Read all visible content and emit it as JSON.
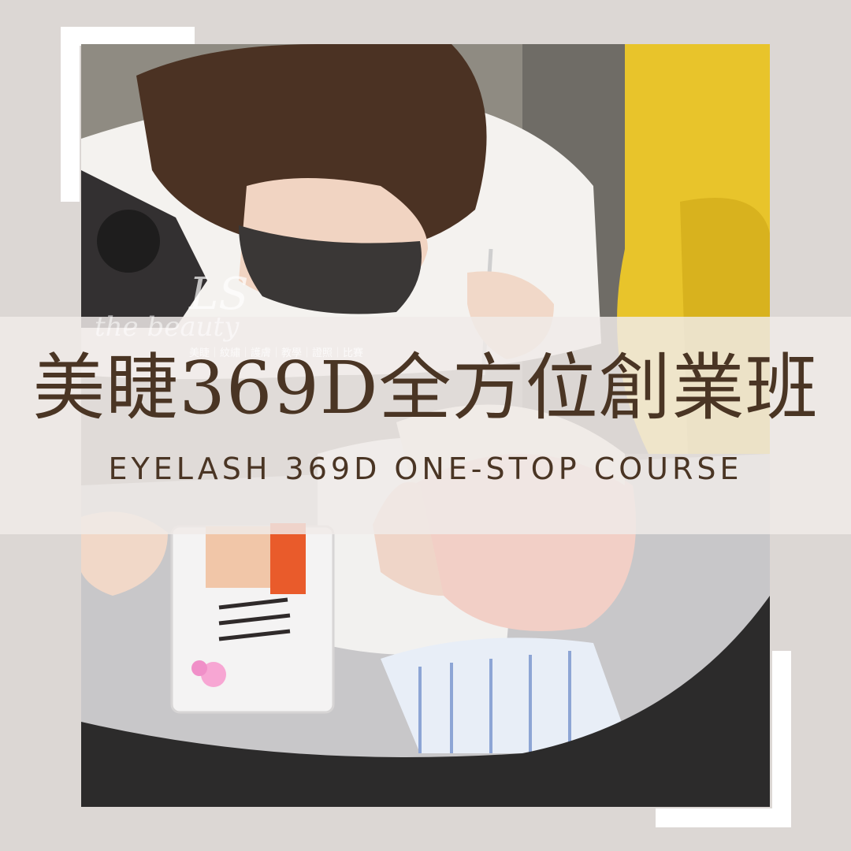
{
  "title_cn": "美睫369D全方位創業班",
  "title_en": "EYELASH 369D ONE-STOP COURSE",
  "watermark": {
    "logo_text": "LS",
    "script_text": "the beauty",
    "services": "美睫｜紋繡｜護膚｜教學｜證照｜比賽"
  },
  "colors": {
    "background": "#dcd7d4",
    "frame": "#ffffff",
    "band": "#f0ebe8",
    "text": "#4a3524",
    "chair": "#e8c42b",
    "mask_dark": "#3a3736",
    "mask_client": "#f2cfc6"
  },
  "photo": {
    "subject": "photo",
    "icons": [
      "magnifier-lamp",
      "tweezers",
      "lash-tray",
      "towel"
    ]
  }
}
